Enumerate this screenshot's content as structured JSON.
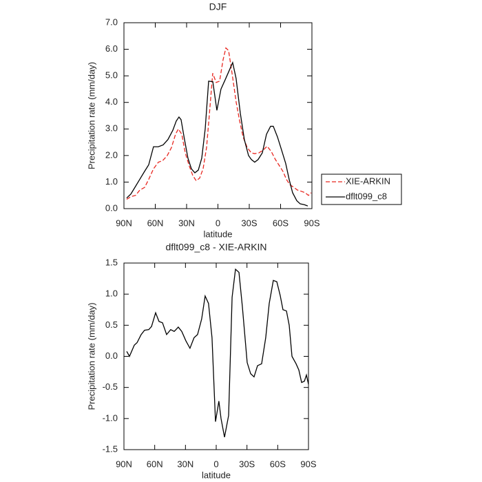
{
  "chart_data": [
    {
      "type": "line",
      "title": "DJF",
      "x_label": "latitude",
      "y_label": "Precipitation rate (mm/day)",
      "xlim": [
        90,
        -90
      ],
      "ylim": [
        0,
        7
      ],
      "xticks": [
        {
          "value": 90,
          "label": "90N"
        },
        {
          "value": 60,
          "label": "60N"
        },
        {
          "value": 30,
          "label": "30N"
        },
        0,
        {
          "value": -30,
          "label": "30S"
        },
        {
          "value": -60,
          "label": "60S"
        },
        {
          "value": -90,
          "label": "90S"
        }
      ],
      "yticks": [
        {
          "value": 0,
          "label": "0.0"
        },
        {
          "value": 1,
          "label": "1.0"
        },
        {
          "value": 2,
          "label": "2.0"
        },
        {
          "value": 3,
          "label": "3.0"
        },
        {
          "value": 4,
          "label": "4.0"
        },
        {
          "value": 5,
          "label": "5.0"
        },
        {
          "value": 6,
          "label": "6.0"
        },
        {
          "value": 7,
          "label": "7.0"
        }
      ],
      "legend": "right",
      "series": [
        {
          "name": "XIE-ARKIN",
          "color": "#e8261f",
          "line_style": "dashed",
          "x": [
            87.4,
            83.4,
            78.8,
            74.8,
            70.2,
            66.3,
            61.7,
            57.0,
            53.1,
            48.5,
            44.5,
            40.6,
            37.9,
            34.6,
            31.3,
            27.4,
            24.1,
            20.8,
            17.5,
            14.2,
            10.9,
            8.3,
            5.0,
            1.7,
            -1.6,
            -4.9,
            -7.6,
            -10.2,
            -13.5,
            -17.5,
            -20.8,
            -24.1,
            -28.0,
            -32.0,
            -35.2,
            -39.2,
            -43.2,
            -47.1,
            -51.1,
            -55.0,
            -58.3,
            -62.3,
            -65.6,
            -68.9,
            -72.8,
            -76.1,
            -80.1,
            -83.4,
            -86.7,
            -89.3
          ],
          "values": [
            0.35,
            0.45,
            0.5,
            0.7,
            0.8,
            1.1,
            1.5,
            1.75,
            1.8,
            2.0,
            2.3,
            2.8,
            3.0,
            2.8,
            2.1,
            1.6,
            1.25,
            1.05,
            1.15,
            1.5,
            2.3,
            3.5,
            5.1,
            4.75,
            4.8,
            5.6,
            6.05,
            5.95,
            5.1,
            4.0,
            3.3,
            2.7,
            2.3,
            2.1,
            2.07,
            2.1,
            2.2,
            2.35,
            2.15,
            1.85,
            1.65,
            1.4,
            1.1,
            0.9,
            0.8,
            0.7,
            0.65,
            0.6,
            0.5,
            0.6
          ]
        },
        {
          "name": "dflt099_c8",
          "color": "#000000",
          "line_style": "solid",
          "x": [
            87.4,
            83.4,
            79.5,
            74.9,
            70.3,
            66.3,
            61.7,
            57.1,
            52.5,
            47.9,
            43.2,
            39.9,
            37.3,
            35.3,
            32.0,
            28.7,
            25.4,
            22.1,
            18.8,
            15.5,
            12.2,
            8.9,
            4.9,
            1.0,
            -2.9,
            -6.9,
            -10.8,
            -14.1,
            -17.4,
            -21.4,
            -25.3,
            -29.3,
            -32.0,
            -35.2,
            -38.5,
            -42.5,
            -46.5,
            -50.4,
            -53.0,
            -57.0,
            -61.0,
            -64.9,
            -68.2,
            -71.5,
            -75.5,
            -78.8,
            -82.7,
            -86.0
          ],
          "values": [
            0.4,
            0.55,
            0.8,
            1.1,
            1.4,
            1.65,
            2.33,
            2.33,
            2.4,
            2.6,
            2.95,
            3.3,
            3.45,
            3.35,
            2.6,
            1.9,
            1.5,
            1.35,
            1.45,
            1.9,
            3.0,
            4.8,
            4.78,
            3.7,
            4.5,
            4.85,
            5.2,
            5.5,
            4.9,
            3.6,
            2.6,
            2.0,
            1.85,
            1.75,
            1.85,
            2.1,
            2.8,
            3.1,
            3.1,
            2.7,
            2.2,
            1.7,
            1.1,
            0.6,
            0.3,
            0.18,
            0.15,
            0.1
          ]
        }
      ]
    },
    {
      "type": "line",
      "title": "dflt099_c8 - XIE-ARKIN",
      "x_label": "latitude",
      "y_label": "Precipitation rate (mm/day)",
      "xlim": [
        90,
        -90
      ],
      "ylim": [
        -1.5,
        1.5
      ],
      "xticks": [
        {
          "value": 90,
          "label": "90N"
        },
        {
          "value": 60,
          "label": "60N"
        },
        {
          "value": 30,
          "label": "30N"
        },
        0,
        {
          "value": -30,
          "label": "30S"
        },
        {
          "value": -60,
          "label": "60S"
        },
        {
          "value": -90,
          "label": "90S"
        }
      ],
      "yticks": [
        -1.5,
        {
          "value": -1,
          "label": "-1.0"
        },
        -0.5,
        {
          "value": 0,
          "label": "0.0"
        },
        0.5,
        {
          "value": 1,
          "label": "1.0"
        },
        1.5
      ],
      "series": [
        {
          "color": "#000000",
          "line_style": "solid",
          "x": [
            87.3,
            84.6,
            79.9,
            77.2,
            73.2,
            69.9,
            65.8,
            63.1,
            59.1,
            55.8,
            52.4,
            48.4,
            44.4,
            41.0,
            37.0,
            33.6,
            29.6,
            25.6,
            21.6,
            18.2,
            14.2,
            10.8,
            7.5,
            4.1,
            0.7,
            -2.6,
            -4.7,
            -8.1,
            -12.1,
            -15.5,
            -18.8,
            -22.2,
            -25.5,
            -30.2,
            -33.6,
            -36.9,
            -40.3,
            -44.3,
            -48.3,
            -51.7,
            -55.7,
            -59.1,
            -62.4,
            -65.1,
            -68.5,
            -71.2,
            -73.9,
            -77.9,
            -80.6,
            -83.3,
            -86.0,
            -88.0,
            -90.0
          ],
          "values": [
            0.08,
            0.0,
            0.18,
            0.22,
            0.35,
            0.42,
            0.43,
            0.48,
            0.7,
            0.56,
            0.54,
            0.35,
            0.43,
            0.4,
            0.47,
            0.4,
            0.25,
            0.13,
            0.3,
            0.35,
            0.6,
            0.97,
            0.85,
            0.3,
            -1.05,
            -0.72,
            -1.0,
            -1.3,
            -0.95,
            0.95,
            1.4,
            1.35,
            0.8,
            -0.1,
            -0.28,
            -0.33,
            -0.15,
            -0.12,
            0.3,
            0.85,
            1.22,
            1.2,
            0.98,
            0.75,
            0.73,
            0.5,
            0.0,
            -0.12,
            -0.22,
            -0.42,
            -0.4,
            -0.3,
            -0.45
          ]
        }
      ]
    }
  ]
}
